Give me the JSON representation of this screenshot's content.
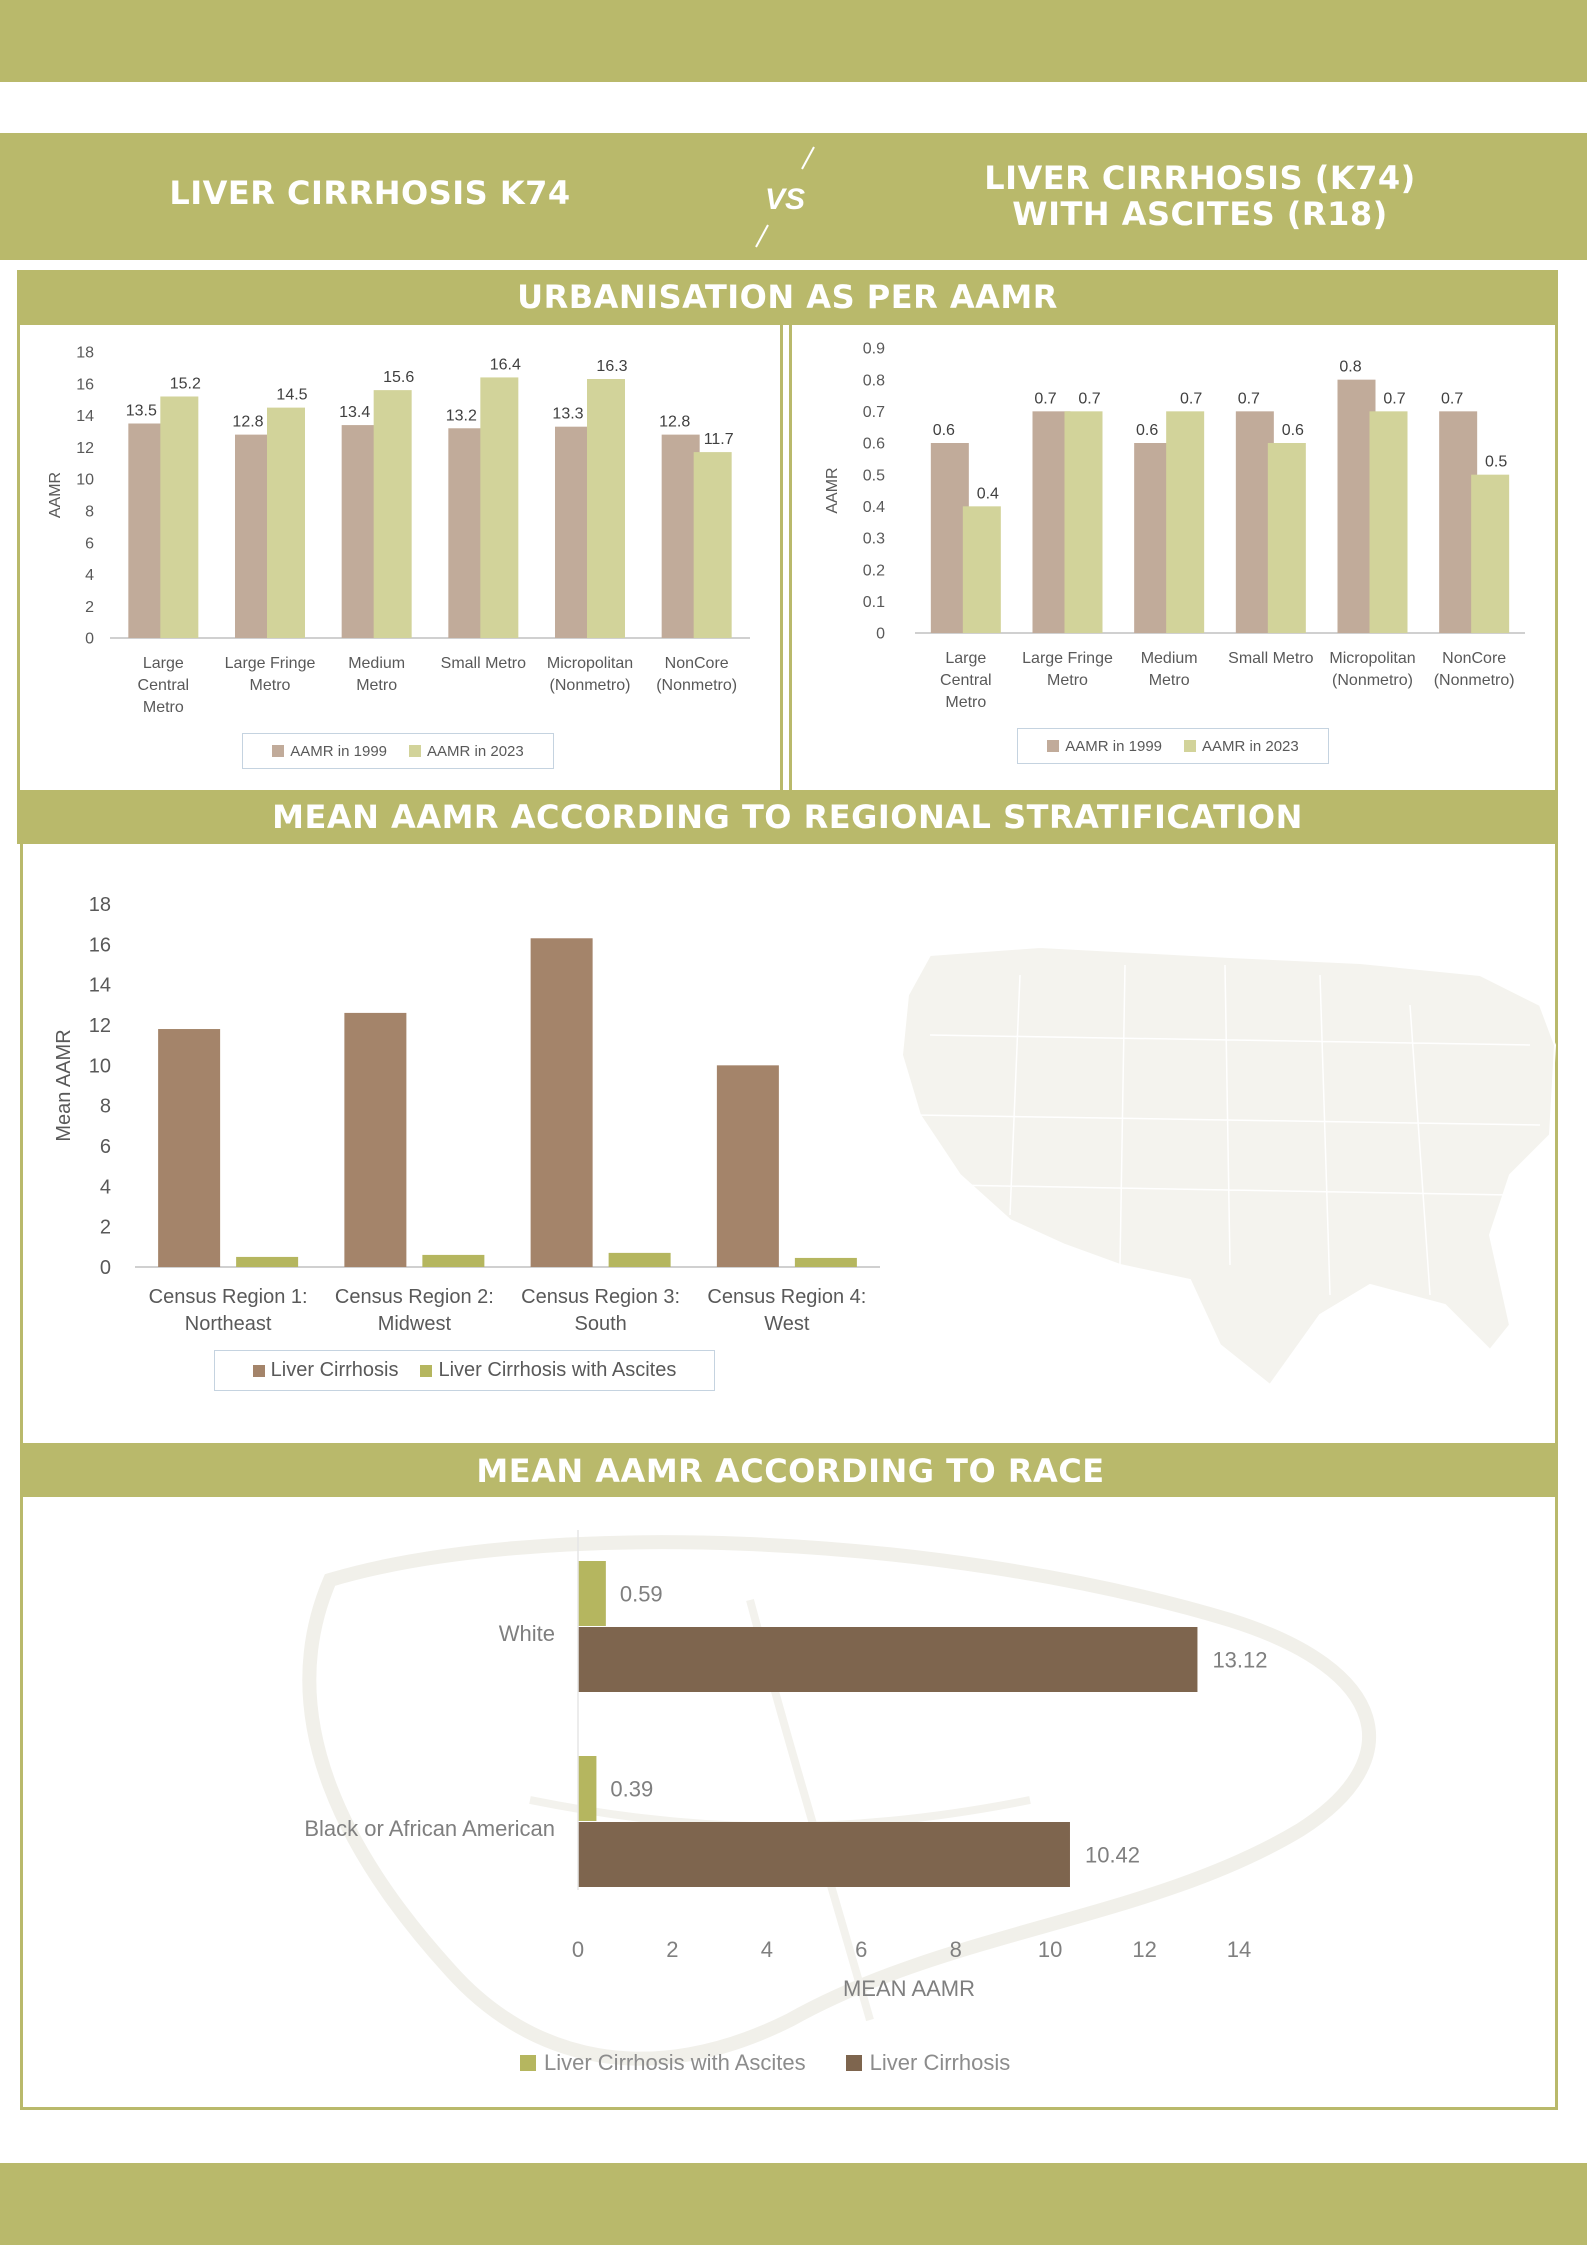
{
  "colors": {
    "accent": "#b9b96b",
    "bar_1999": "#c1ab9a",
    "bar_2023": "#d2d39a",
    "cirrhosis": "#a4846a",
    "ascites": "#b5b65f",
    "race_cirrhosis": "#7e654e",
    "race_ascites": "#b5b65f"
  },
  "header": {
    "left_title": "LIVER CIRRHOSIS K74",
    "vs": "VS",
    "right_title_line1": "LIVER CIRRHOSIS (K74)",
    "right_title_line2": "WITH ASCITES (R18)"
  },
  "sections": {
    "urbanisation": "URBANISATION AS PER AAMR",
    "regional": "MEAN AAMR ACCORDING TO REGIONAL STRATIFICATION",
    "race": "MEAN AAMR ACCORDING TO RACE"
  },
  "chart_data": [
    {
      "type": "bar",
      "ylabel": "AAMR",
      "ylim": [
        0,
        18
      ],
      "yticks": [
        "0",
        "2",
        "4",
        "6",
        "8",
        "10",
        "12",
        "14",
        "16",
        "18"
      ],
      "categories": [
        [
          "Large",
          "Central",
          "Metro"
        ],
        [
          "Large Fringe",
          "Metro"
        ],
        [
          "Medium",
          "Metro"
        ],
        [
          "Small  Metro"
        ],
        [
          "Micropolitan",
          "(Nonmetro)"
        ],
        [
          "NonCore",
          "(Nonmetro)"
        ]
      ],
      "series": [
        {
          "name": "AAMR in 1999",
          "values": [
            13.5,
            12.8,
            13.4,
            13.2,
            13.3,
            12.8
          ],
          "labels": [
            "13.5",
            "12.8",
            "13.4",
            "13.2",
            "13.3",
            "12.8"
          ]
        },
        {
          "name": "AAMR in 2023",
          "values": [
            15.2,
            14.5,
            15.6,
            16.4,
            16.3,
            11.7
          ],
          "labels": [
            "15.2",
            "14.5",
            "15.6",
            "16.4",
            "16.3",
            "11.7"
          ]
        }
      ],
      "legend": "bottom"
    },
    {
      "type": "bar",
      "ylabel": "AAMR",
      "ylim": [
        0,
        0.9
      ],
      "yticks": [
        "0",
        "0.1",
        "0.2",
        "0.3",
        "0.4",
        "0.5",
        "0.6",
        "0.7",
        "0.8",
        "0.9"
      ],
      "categories": [
        [
          "Large",
          "Central",
          "Metro"
        ],
        [
          "Large Fringe",
          "Metro"
        ],
        [
          "Medium",
          "Metro"
        ],
        [
          "Small  Metro"
        ],
        [
          "Micropolitan",
          "(Nonmetro)"
        ],
        [
          "NonCore",
          "(Nonmetro)"
        ]
      ],
      "series": [
        {
          "name": "AAMR in 1999",
          "values": [
            0.6,
            0.7,
            0.6,
            0.7,
            0.8,
            0.7
          ],
          "labels": [
            "0.6",
            "0.7",
            "0.6",
            "0.7",
            "0.8",
            "0.7"
          ]
        },
        {
          "name": "AAMR in 2023",
          "values": [
            0.4,
            0.7,
            0.7,
            0.6,
            0.7,
            0.5
          ],
          "labels": [
            "0.4",
            "0.7",
            "0.7",
            "0.6",
            "0.7",
            "0.5"
          ]
        }
      ],
      "legend": "bottom"
    },
    {
      "type": "bar",
      "ylabel": "Mean AAMR",
      "ylim": [
        0,
        18
      ],
      "yticks": [
        "0",
        "2",
        "4",
        "6",
        "8",
        "10",
        "12",
        "14",
        "16",
        "18"
      ],
      "categories": [
        [
          "Census Region 1:",
          "Northeast"
        ],
        [
          "Census Region 2:",
          "Midwest"
        ],
        [
          "Census Region 3:",
          "South"
        ],
        [
          "Census Region 4:",
          "West"
        ]
      ],
      "series": [
        {
          "name": "Liver Cirrhosis",
          "values": [
            11.8,
            12.6,
            16.3,
            10.0
          ]
        },
        {
          "name": "Liver Cirrhosis with Ascites",
          "values": [
            0.5,
            0.6,
            0.7,
            0.45
          ]
        }
      ],
      "legend": "bottom"
    },
    {
      "type": "bar",
      "orientation": "horizontal",
      "xlabel": "MEAN AAMR",
      "xlim": [
        0,
        14
      ],
      "xticks": [
        "0",
        "2",
        "4",
        "6",
        "8",
        "10",
        "12",
        "14"
      ],
      "categories": [
        "White",
        "Black or African American"
      ],
      "series": [
        {
          "name": "Liver Cirrhosis with Ascites",
          "values": [
            0.59,
            0.39
          ],
          "labels": [
            "0.59",
            "0.39"
          ]
        },
        {
          "name": "Liver Cirrhosis",
          "values": [
            13.12,
            10.42
          ],
          "labels": [
            "13.12",
            "10.42"
          ]
        }
      ],
      "legend": "bottom"
    }
  ]
}
